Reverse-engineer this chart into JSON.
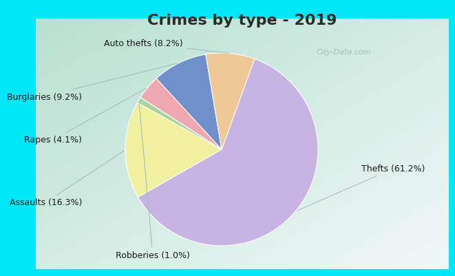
{
  "title": "Crimes by type - 2019",
  "labels": [
    "Thefts",
    "Assaults",
    "Robberies",
    "Rapes",
    "Burglaries",
    "Auto thefts"
  ],
  "values": [
    61.2,
    16.3,
    1.0,
    4.1,
    9.2,
    8.2
  ],
  "colors": [
    "#c8b4e3",
    "#f0f0a0",
    "#a8d4a0",
    "#f0a8b0",
    "#7090cc",
    "#f0c898"
  ],
  "label_texts": [
    "Thefts (61.2%)",
    "Assaults (16.3%)",
    "Robberies (1.0%)",
    "Rapes (4.1%)",
    "Burglaries (9.2%)",
    "Auto thefts (8.2%)"
  ],
  "bg_cyan": "#00e8f8",
  "bg_inner_topleft": "#c8e8d8",
  "bg_inner_bottomright": "#e8f0f4",
  "title_fontsize": 16,
  "label_fontsize": 9,
  "watermark_text": "City-Data.com"
}
